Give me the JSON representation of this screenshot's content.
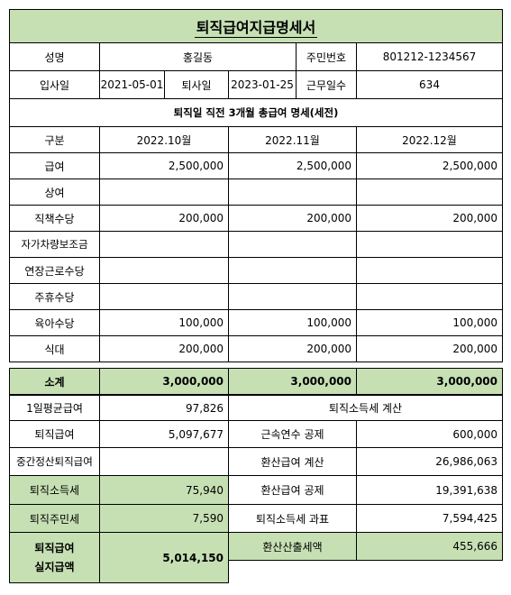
{
  "title": "퇴직급여지급명세서",
  "info": {
    "name_label": "성명",
    "name": "홍길동",
    "id_label": "주민번호",
    "id": "801212-1234567",
    "join_label": "입사일",
    "join_date": "2021-05-01",
    "leave_label": "퇴사일",
    "leave_date": "2023-01-25",
    "days_label": "근무일수",
    "days": "634"
  },
  "section_title": "퇴직일 직전 3개월 총급여 명세(세전)",
  "months": {
    "label": "구분",
    "m1": "2022.10월",
    "m2": "2022.11월",
    "m3": "2022.12월"
  },
  "rows": [
    {
      "label": "급여",
      "v1": "2,500,000",
      "v2": "2,500,000",
      "v3": "2,500,000"
    },
    {
      "label": "상여",
      "v1": "",
      "v2": "",
      "v3": ""
    },
    {
      "label": "직책수당",
      "v1": "200,000",
      "v2": "200,000",
      "v3": "200,000"
    },
    {
      "label": "자가차량보조금",
      "v1": "",
      "v2": "",
      "v3": ""
    },
    {
      "label": "연장근로수당",
      "v1": "",
      "v2": "",
      "v3": ""
    },
    {
      "label": "주휴수당",
      "v1": "",
      "v2": "",
      "v3": ""
    },
    {
      "label": "육아수당",
      "v1": "100,000",
      "v2": "100,000",
      "v3": "100,000"
    },
    {
      "label": "식대",
      "v1": "200,000",
      "v2": "200,000",
      "v3": "200,000"
    }
  ],
  "subtotal": {
    "label": "소계",
    "v1": "3,000,000",
    "v2": "3,000,000",
    "v3": "3,000,000"
  },
  "left": {
    "daily_label": "1일평균급여",
    "daily": "97,826",
    "severance_label": "퇴직급여",
    "severance": "5,097,677",
    "interim_label": "중간정산퇴직급여",
    "interim": "",
    "income_tax_label": "퇴직소득세",
    "income_tax": "75,940",
    "resident_tax_label": "퇴직주민세",
    "resident_tax": "7,590",
    "net_label_1": "퇴직급여",
    "net_label_2": "실지급액",
    "net": "5,014,150"
  },
  "right": {
    "header": "퇴직소득세 계산",
    "service_deduction_label": "근속연수 공제",
    "service_deduction": "600,000",
    "converted_label": "환산급여 계산",
    "converted": "26,986,063",
    "converted_deduction_label": "환산급여 공제",
    "converted_deduction": "19,391,638",
    "tax_base_label": "퇴직소득세 과표",
    "tax_base": "7,594,425",
    "calc_tax_label": "환산산출세액",
    "calc_tax": "455,666"
  }
}
